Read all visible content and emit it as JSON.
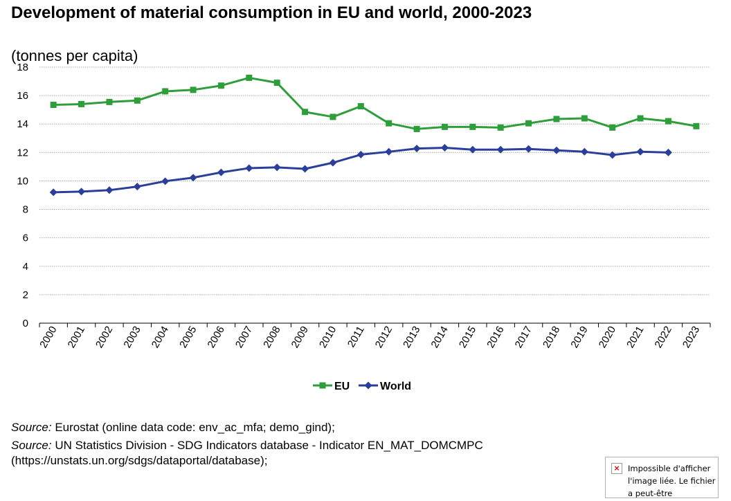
{
  "header": {
    "title": "Development of material consumption in EU and world, 2000-2023",
    "subtitle": "(tonnes per capita)"
  },
  "sources": [
    {
      "label": "Source:",
      "text": " Eurostat (online data code: env_ac_mfa; demo_gind);"
    },
    {
      "label": "Source:",
      "text": " UN Statistics Division - SDG Indicators database - Indicator EN_MAT_DOMCMPC"
    }
  ],
  "source_url": "(https://unstats.un.org/sdgs/dataportal/database);",
  "broken_image": {
    "icon": "broken-image-icon",
    "text": "Impossible d'afficher l'image liée. Le fichier a peut-être"
  },
  "chart_data": {
    "type": "line",
    "categories": [
      "2000",
      "2001",
      "2002",
      "2003",
      "2004",
      "2005",
      "2006",
      "2007",
      "2008",
      "2009",
      "2010",
      "2011",
      "2012",
      "2013",
      "2014",
      "2015",
      "2016",
      "2017",
      "2018",
      "2019",
      "2020",
      "2021",
      "2022",
      "2023"
    ],
    "yticks": [
      "0",
      "2",
      "4",
      "6",
      "8",
      "10",
      "12",
      "14",
      "16",
      "18"
    ],
    "ylim": [
      0,
      18
    ],
    "grid": true,
    "legend": "bottom",
    "series": [
      {
        "name": "EU",
        "color": "#2e9e3a",
        "marker": "square",
        "values": [
          15.35,
          15.4,
          15.55,
          15.65,
          16.3,
          16.4,
          16.7,
          17.25,
          16.9,
          14.85,
          14.5,
          15.25,
          14.05,
          13.65,
          13.8,
          13.8,
          13.75,
          14.05,
          14.35,
          14.4,
          13.75,
          14.4,
          14.2,
          13.85
        ]
      },
      {
        "name": "World",
        "color": "#2a3f9a",
        "marker": "diamond",
        "values": [
          9.2,
          9.25,
          9.35,
          9.6,
          9.98,
          10.23,
          10.6,
          10.9,
          10.95,
          10.85,
          11.28,
          11.85,
          12.05,
          12.28,
          12.33,
          12.2,
          12.2,
          12.25,
          12.15,
          12.05,
          11.82,
          12.05,
          12.0,
          null
        ]
      }
    ]
  }
}
